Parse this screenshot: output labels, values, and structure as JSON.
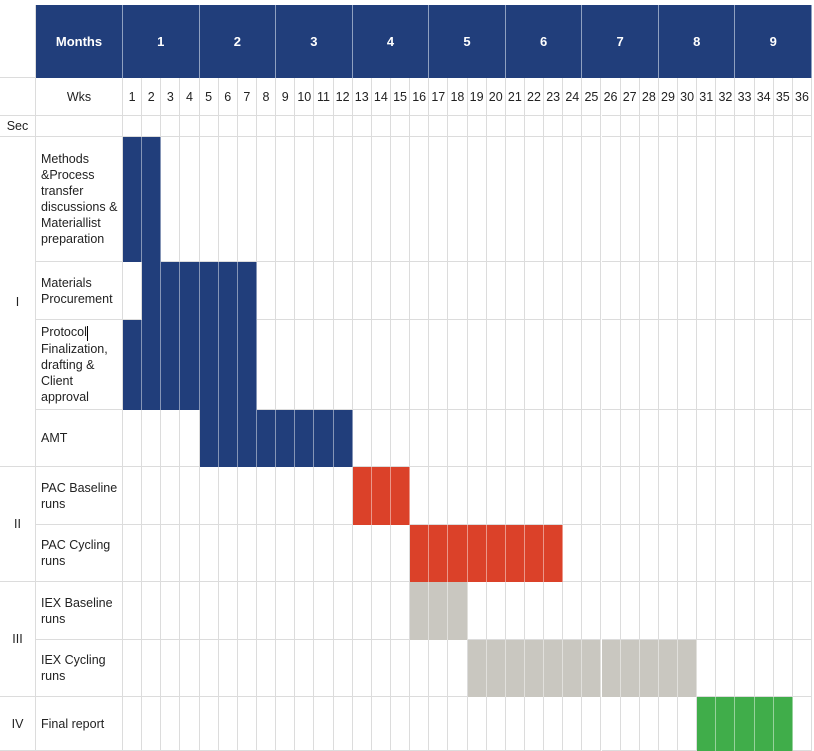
{
  "chart_data": {
    "type": "gantt",
    "header": {
      "months_label": "Months",
      "weeks_label": "Wks",
      "section_label": "Sec"
    },
    "months": [
      "1",
      "2",
      "3",
      "4",
      "5",
      "6",
      "7",
      "8",
      "9"
    ],
    "weeks_per_month": 4,
    "weeks": [
      "1",
      "2",
      "3",
      "4",
      "5",
      "6",
      "7",
      "8",
      "9",
      "10",
      "11",
      "12",
      "13",
      "14",
      "15",
      "16",
      "17",
      "18",
      "19",
      "20",
      "21",
      "22",
      "23",
      "24",
      "25",
      "26",
      "27",
      "28",
      "29",
      "30",
      "31",
      "32",
      "33",
      "34",
      "35",
      "36"
    ],
    "sections": [
      {
        "label": "I",
        "tasks": [
          {
            "name": "Methods &Process transfer discussions & Materiallist preparation",
            "start_week": 1,
            "end_week": 2,
            "color": "#213e7b"
          },
          {
            "name": "Materials Procurement",
            "start_week": 2,
            "end_week": 7,
            "color": "#213e7b"
          },
          {
            "name": "Protocol Finalization, drafting & Client approval",
            "start_week": 1,
            "end_week": 7,
            "color": "#213e7b"
          },
          {
            "name": "AMT",
            "start_week": 5,
            "end_week": 12,
            "color": "#213e7b"
          }
        ]
      },
      {
        "label": "II",
        "tasks": [
          {
            "name": "PAC Baseline runs",
            "start_week": 13,
            "end_week": 15,
            "color": "#db4129"
          },
          {
            "name": "PAC Cycling runs",
            "start_week": 16,
            "end_week": 23,
            "color": "#db4129"
          }
        ]
      },
      {
        "label": "III",
        "tasks": [
          {
            "name": "IEX Baseline runs",
            "start_week": 16,
            "end_week": 18,
            "color": "#c9c7c0"
          },
          {
            "name": "IEX Cycling runs",
            "start_week": 19,
            "end_week": 30,
            "color": "#c9c7c0"
          }
        ]
      },
      {
        "label": "IV",
        "tasks": [
          {
            "name": "Final report",
            "start_week": 31,
            "end_week": 35,
            "color": "#40ad4a"
          }
        ]
      }
    ]
  }
}
